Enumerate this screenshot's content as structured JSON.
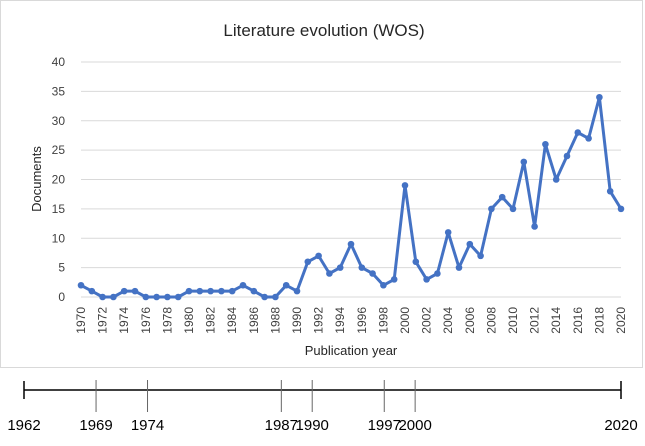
{
  "chart_data": {
    "type": "line",
    "title": "Literature evolution (WOS)",
    "xlabel": "Publication year",
    "ylabel": "Documents",
    "ylim": [
      0,
      40
    ],
    "yticks": [
      "0",
      "5",
      "10",
      "15",
      "20",
      "25",
      "30",
      "35",
      "40"
    ],
    "xticks": [
      "1970",
      "1972",
      "1974",
      "1976",
      "1978",
      "1980",
      "1982",
      "1984",
      "1986",
      "1988",
      "1990",
      "1992",
      "1994",
      "1996",
      "1998",
      "2000",
      "2002",
      "2004",
      "2006",
      "2008",
      "2010",
      "2012",
      "2014",
      "2016",
      "2018",
      "2020"
    ],
    "grid": "horizontal",
    "legend": "none",
    "color": "#4472C4",
    "x": [
      1970,
      1971,
      1972,
      1973,
      1974,
      1975,
      1976,
      1977,
      1978,
      1979,
      1980,
      1981,
      1982,
      1983,
      1984,
      1985,
      1986,
      1987,
      1988,
      1989,
      1990,
      1991,
      1992,
      1993,
      1994,
      1995,
      1996,
      1997,
      1998,
      1999,
      2000,
      2001,
      2002,
      2003,
      2004,
      2005,
      2006,
      2007,
      2008,
      2009,
      2010,
      2011,
      2012,
      2013,
      2014,
      2015,
      2016,
      2017,
      2018,
      2019,
      2020
    ],
    "values": [
      2,
      1,
      0,
      0,
      1,
      1,
      0,
      0,
      0,
      0,
      1,
      1,
      1,
      1,
      1,
      2,
      1,
      0,
      0,
      2,
      1,
      6,
      7,
      4,
      5,
      9,
      5,
      4,
      2,
      3,
      19,
      6,
      3,
      4,
      11,
      5,
      9,
      7,
      15,
      17,
      15,
      23,
      12,
      26,
      20,
      24,
      28,
      27,
      34,
      18,
      15
    ]
  },
  "timeline": {
    "labels": [
      "1962",
      "1969",
      "1974",
      "1987",
      "1990",
      "1997",
      "2000",
      "2020"
    ],
    "years": [
      1962,
      1969,
      1974,
      1987,
      1990,
      1997,
      2000,
      2020
    ],
    "start": 1962,
    "end": 2020
  }
}
